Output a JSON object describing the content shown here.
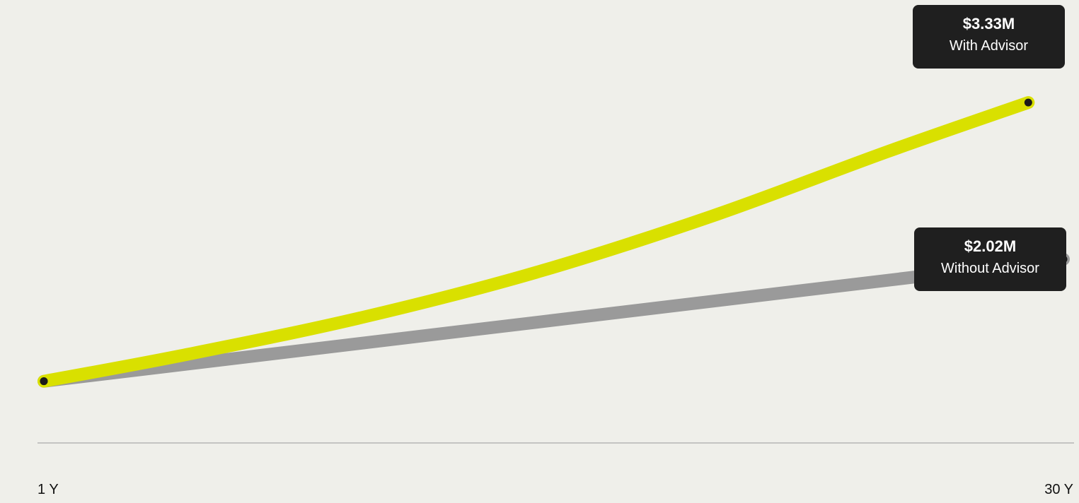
{
  "chart_data": {
    "type": "line",
    "x_tick_labels": [
      "1 Y",
      "30 Y"
    ],
    "xlim": [
      1,
      30
    ],
    "ylim": [
      0,
      4.2
    ],
    "grid": false,
    "colors": {
      "with": "#d9e000",
      "without": "#9a9a9a",
      "point": "#1a1a1a",
      "axis": "#9a9a9a",
      "callout_bg": "#1f1f1f"
    },
    "series": [
      {
        "key": "without",
        "x": [
          1,
          30
        ],
        "values": [
          1.0,
          2.02
        ],
        "callout": {
          "value": "$2.02M",
          "label": "Without Advisor"
        }
      },
      {
        "key": "with",
        "x": [
          1,
          5,
          10,
          15,
          20,
          25,
          29
        ],
        "values": [
          1.0,
          1.22,
          1.53,
          1.91,
          2.38,
          2.92,
          3.33
        ],
        "callout": {
          "value": "$3.33M",
          "label": "With Advisor"
        }
      }
    ]
  }
}
